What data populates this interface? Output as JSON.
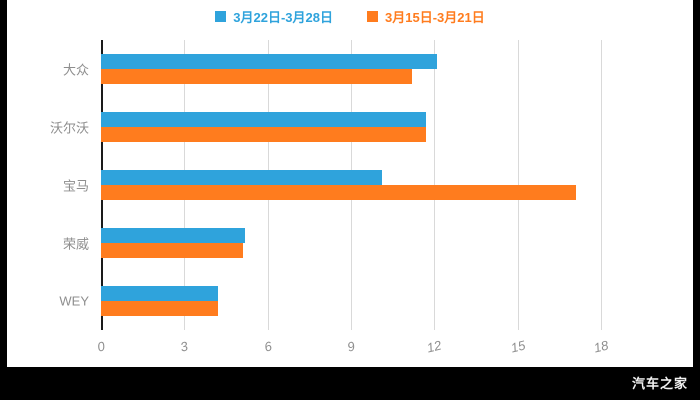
{
  "watermark": "汽车之家",
  "chart_data": {
    "type": "bar",
    "orientation": "horizontal",
    "title": "",
    "categories": [
      "大众",
      "沃尔沃",
      "宝马",
      "荣威",
      "WEY"
    ],
    "series": [
      {
        "name": "3月22日-3月28日",
        "color": "#2fa3dc",
        "values": [
          12.1,
          11.7,
          10.1,
          5.2,
          4.2
        ]
      },
      {
        "name": "3月15日-3月21日",
        "color": "#ff7c1e",
        "values": [
          11.2,
          11.7,
          17.1,
          5.1,
          4.2
        ]
      }
    ],
    "xlim": [
      0,
      18
    ],
    "xticks": [
      0,
      3,
      6,
      9,
      12,
      15,
      18
    ],
    "grid": true,
    "legend_position": "top",
    "colors": {
      "gridline": "#d9d9d9",
      "axis": "#1a1a1a",
      "label": "#8e8e8e",
      "background": "#ffffff",
      "frame": "#000000"
    }
  }
}
